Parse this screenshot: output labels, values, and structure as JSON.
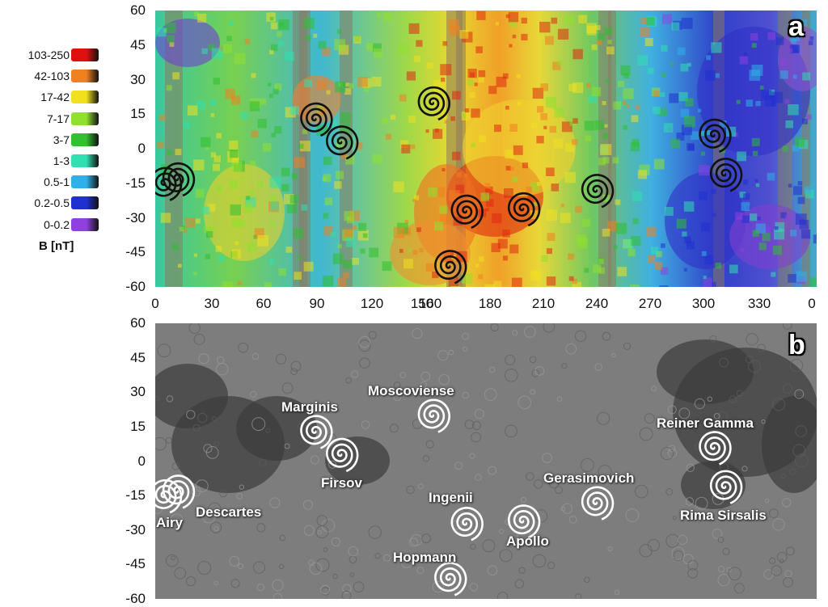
{
  "legend": {
    "title": "B [nT]",
    "bins": [
      {
        "label": "103-250",
        "color": "#e01010"
      },
      {
        "label": "42-103",
        "color": "#f08020"
      },
      {
        "label": "17-42",
        "color": "#f0e020"
      },
      {
        "label": "7-17",
        "color": "#90e030"
      },
      {
        "label": "3-7",
        "color": "#30c030"
      },
      {
        "label": "1-3",
        "color": "#30e0b0"
      },
      {
        "label": "0.5-1",
        "color": "#30b0e8"
      },
      {
        "label": "0.2-0.5",
        "color": "#2030d0"
      },
      {
        "label": "0-0.2",
        "color": "#9040e0"
      }
    ]
  },
  "axes": {
    "latitude_ticks": [
      "60",
      "45",
      "30",
      "15",
      "0",
      "-15",
      "-30",
      "-45",
      "-60"
    ],
    "longitude_ticks": [
      "0",
      "30",
      "60",
      "90",
      "120",
      "150",
      "160",
      "180",
      "210",
      "240",
      "270",
      "300",
      "330",
      "0"
    ]
  },
  "panels": {
    "a": {
      "letter": "a"
    },
    "b": {
      "letter": "b"
    }
  },
  "sites": [
    {
      "name": "Airy",
      "lon": 5,
      "lat": -15
    },
    {
      "name": "Descartes",
      "lon": 12,
      "lat": -13
    },
    {
      "name": "Marginis",
      "lon": 87,
      "lat": 13
    },
    {
      "name": "Firsov",
      "lon": 101,
      "lat": 3
    },
    {
      "name": "Moscoviense",
      "lon": 151,
      "lat": 20
    },
    {
      "name": "Ingenii",
      "lon": 169,
      "lat": -27
    },
    {
      "name": "Hopmann",
      "lon": 160,
      "lat": -51
    },
    {
      "name": "Apollo",
      "lon": 200,
      "lat": -26
    },
    {
      "name": "Gerasimovich",
      "lon": 240,
      "lat": -18
    },
    {
      "name": "Reiner Gamma",
      "lon": 304,
      "lat": 6
    },
    {
      "name": "Rima Sirsalis",
      "lon": 310,
      "lat": -11
    }
  ],
  "colors": {
    "panel_b_base": "#7d7d7d",
    "site_label": "#ffffff",
    "spiral_a": "#111111",
    "spiral_b": "#ffffff"
  }
}
